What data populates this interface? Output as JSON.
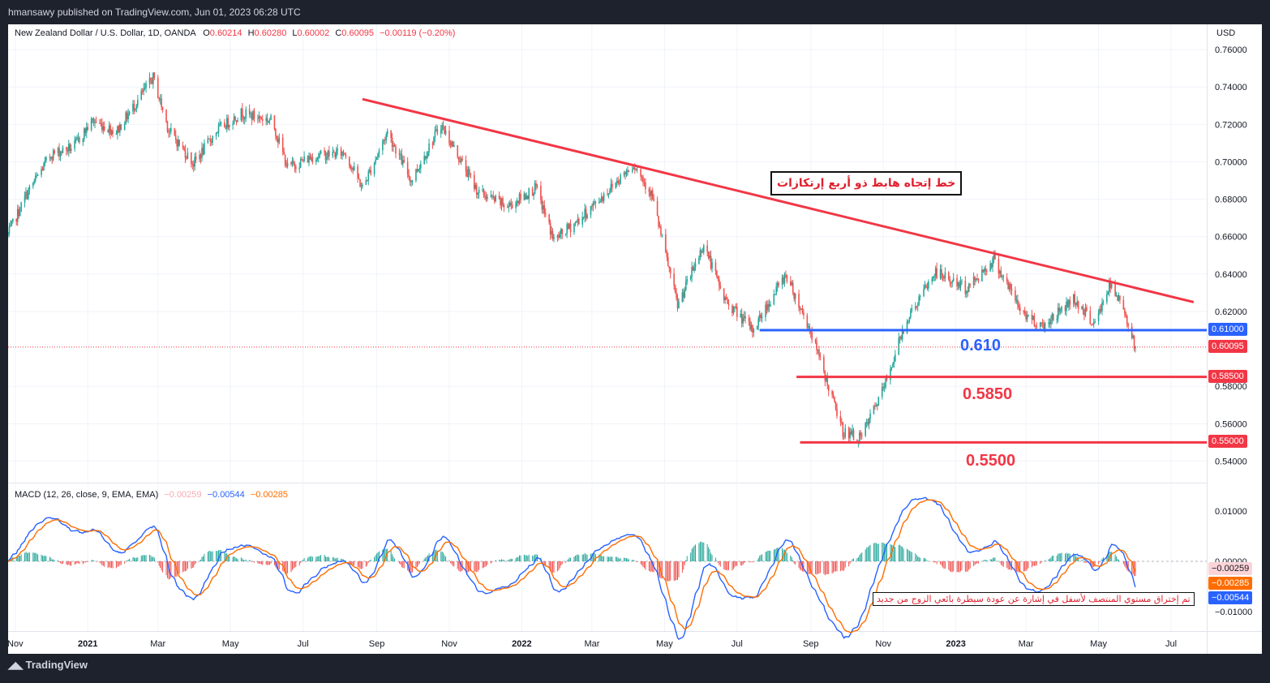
{
  "header": {
    "published": "hmansawy published on TradingView.com, Jun 01, 2023 06:28 UTC"
  },
  "legend": {
    "symbol": "New Zealand Dollar / U.S. Dollar, 1D, OANDA",
    "o_label": "O",
    "o": "0.60214",
    "h_label": "H",
    "h": "0.60280",
    "l_label": "L",
    "l": "0.60002",
    "c_label": "C",
    "c": "0.60095",
    "change": "−0.00119 (−0.20%)"
  },
  "currency": "USD",
  "annotations": {
    "trend_box": "خط إتجاه هابط ذو أربع إرتكازات",
    "break_box": "تم إختراق مستوي المنتصف لأسفل في إشارة عن عودة سيطرة بائعي الزوج من جديد",
    "level1": "0.610",
    "level2": "0.5850",
    "level3": "0.5500"
  },
  "price_axis": {
    "ticks": [
      "0.76000",
      "0.74000",
      "0.72000",
      "0.70000",
      "0.68000",
      "0.66000",
      "0.64000",
      "0.62000",
      "0.58000",
      "0.56000",
      "0.54000"
    ],
    "tags": [
      {
        "text": "0.61000",
        "color": "#2962ff"
      },
      {
        "text": "0.60095",
        "color": "#f23645"
      },
      {
        "text": "0.58500",
        "color": "#f23645"
      },
      {
        "text": "0.55000",
        "color": "#f23645"
      }
    ]
  },
  "macd_legend": {
    "title": "MACD (12, 26, close, 9, EMA, EMA)",
    "hist": "−0.00259",
    "macd": "−0.00544",
    "signal": "−0.00285"
  },
  "macd_axis": {
    "ticks": [
      "0.01000",
      "0.00000",
      "−0.01000"
    ],
    "tags": [
      {
        "text": "−0.00259",
        "color": "#fcd4d8",
        "textColor": "#131722"
      },
      {
        "text": "−0.00285",
        "color": "#ff6d00",
        "textColor": "#ffffff"
      },
      {
        "text": "−0.00544",
        "color": "#2962ff",
        "textColor": "#ffffff"
      }
    ]
  },
  "time_axis": [
    "Nov",
    "2021",
    "Mar",
    "May",
    "Jul",
    "Sep",
    "Nov",
    "2022",
    "Mar",
    "May",
    "Jul",
    "Sep",
    "Nov",
    "2023",
    "Mar",
    "May",
    "Jul"
  ],
  "footer": {
    "brand": "TradingView"
  },
  "chart_data": {
    "type": "candlestick",
    "timeframe": "1D",
    "ylim": [
      0.535,
      0.77
    ],
    "x_range": [
      "2020-10-26",
      "2023-07-31"
    ],
    "colors": {
      "up": "#26a69a",
      "down": "#ef5350",
      "trendline": "#f23645",
      "support_blue": "#2962ff",
      "support_red": "#f23645",
      "macd": "#2962ff",
      "signal": "#ff6d00"
    },
    "trendline": {
      "from": [
        "2021-08-20",
        0.7335
      ],
      "to": [
        "2023-07-20",
        0.625
      ]
    },
    "horizontal_levels": [
      {
        "value": 0.61,
        "from": "2022-07-20"
      },
      {
        "value": 0.585,
        "from": "2022-08-20"
      },
      {
        "value": 0.55,
        "from": "2022-08-23"
      }
    ],
    "last_close": 0.60095,
    "anchor_closes": [
      [
        "2020-10-26",
        0.661
      ],
      [
        "2020-11-10",
        0.682
      ],
      [
        "2020-12-01",
        0.704
      ],
      [
        "2020-12-20",
        0.708
      ],
      [
        "2021-01-05",
        0.722
      ],
      [
        "2021-01-25",
        0.716
      ],
      [
        "2021-02-25",
        0.745
      ],
      [
        "2021-03-10",
        0.717
      ],
      [
        "2021-03-31",
        0.699
      ],
      [
        "2021-04-20",
        0.717
      ],
      [
        "2021-05-10",
        0.726
      ],
      [
        "2021-06-05",
        0.722
      ],
      [
        "2021-06-18",
        0.697
      ],
      [
        "2021-07-10",
        0.703
      ],
      [
        "2021-08-05",
        0.705
      ],
      [
        "2021-08-20",
        0.686
      ],
      [
        "2021-09-10",
        0.716
      ],
      [
        "2021-09-30",
        0.69
      ],
      [
        "2021-10-25",
        0.72
      ],
      [
        "2021-11-25",
        0.684
      ],
      [
        "2021-12-20",
        0.676
      ],
      [
        "2022-01-13",
        0.686
      ],
      [
        "2022-01-28",
        0.658
      ],
      [
        "2022-02-20",
        0.67
      ],
      [
        "2022-03-15",
        0.685
      ],
      [
        "2022-04-05",
        0.699
      ],
      [
        "2022-04-20",
        0.683
      ],
      [
        "2022-05-12",
        0.623
      ],
      [
        "2022-06-03",
        0.656
      ],
      [
        "2022-06-20",
        0.627
      ],
      [
        "2022-07-14",
        0.61
      ],
      [
        "2022-08-11",
        0.64
      ],
      [
        "2022-09-01",
        0.609
      ],
      [
        "2022-09-28",
        0.556
      ],
      [
        "2022-10-13",
        0.552
      ],
      [
        "2022-11-02",
        0.58
      ],
      [
        "2022-11-20",
        0.615
      ],
      [
        "2022-12-15",
        0.641
      ],
      [
        "2023-01-10",
        0.632
      ],
      [
        "2023-02-02",
        0.648
      ],
      [
        "2023-02-25",
        0.62
      ],
      [
        "2023-03-15",
        0.612
      ],
      [
        "2023-04-10",
        0.627
      ],
      [
        "2023-04-28",
        0.613
      ],
      [
        "2023-05-10",
        0.634
      ],
      [
        "2023-05-22",
        0.622
      ],
      [
        "2023-06-01",
        0.601
      ]
    ]
  }
}
